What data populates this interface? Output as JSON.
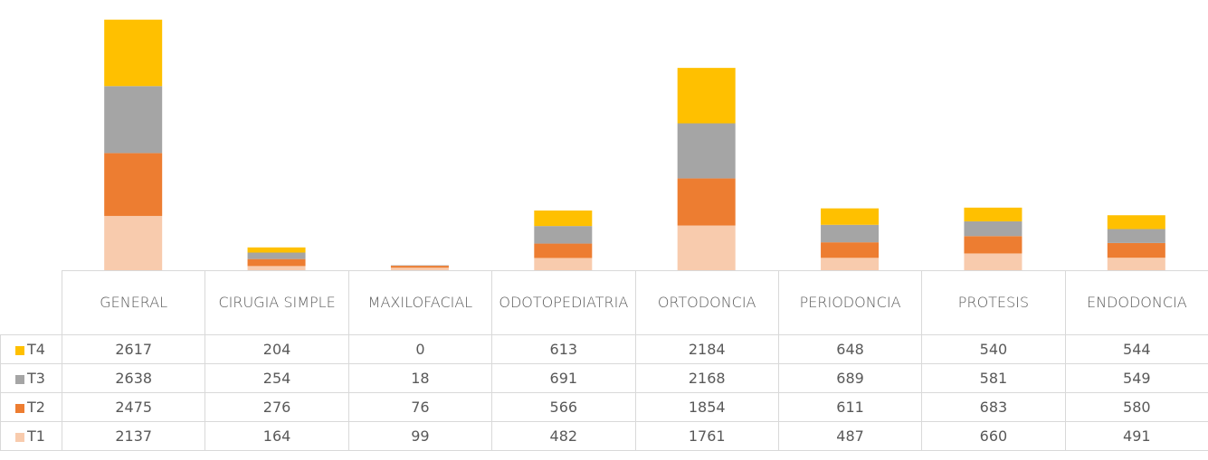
{
  "chart_data": {
    "type": "bar",
    "stacked": true,
    "categories": [
      "GENERAL",
      "CIRUGIA SIMPLE",
      "MAXILOFACIAL",
      "ODOTOPEDIATRIA",
      "ORTODONCIA",
      "PERIODONCIA",
      "PROTESIS",
      "ENDODONCIA"
    ],
    "series": [
      {
        "name": "T1",
        "color": "#f8cbad",
        "values": [
          2137,
          164,
          99,
          482,
          1761,
          487,
          660,
          491
        ]
      },
      {
        "name": "T2",
        "color": "#ed7d31",
        "values": [
          2475,
          276,
          76,
          566,
          1854,
          611,
          683,
          580
        ]
      },
      {
        "name": "T3",
        "color": "#a5a5a5",
        "values": [
          2638,
          254,
          18,
          691,
          2168,
          689,
          581,
          549
        ]
      },
      {
        "name": "T4",
        "color": "#ffc000",
        "values": [
          2617,
          204,
          0,
          613,
          2184,
          648,
          540,
          544
        ]
      }
    ],
    "ylim": [
      0,
      10000
    ]
  }
}
